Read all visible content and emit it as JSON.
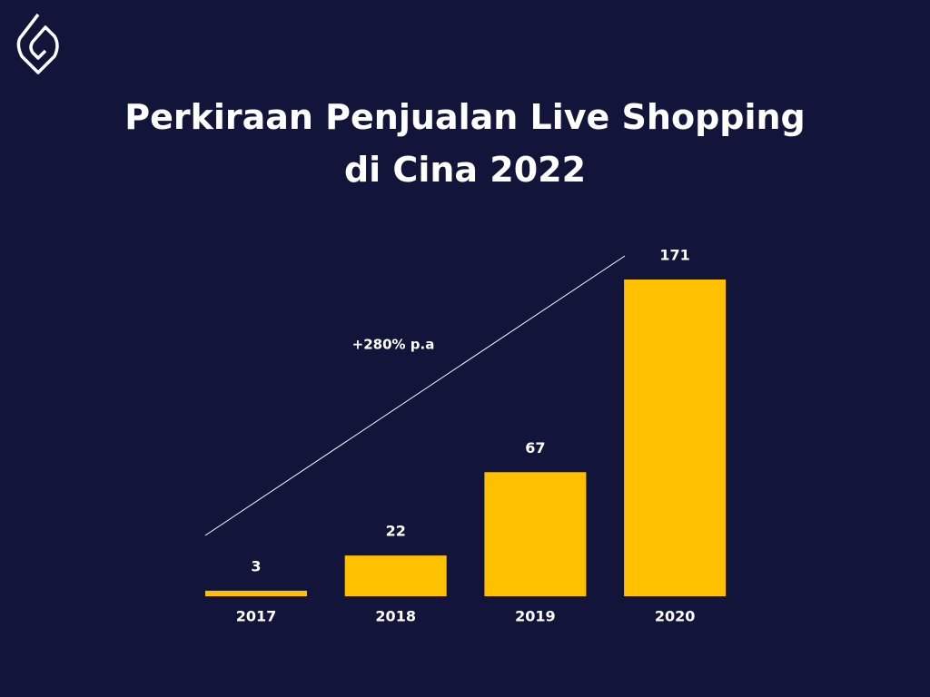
{
  "chart_data": {
    "type": "bar",
    "title": "Perkiraan Penjualan Live Shopping di Cina 2022",
    "annotation": "+280% p.a",
    "categories": [
      "2017",
      "2018",
      "2019",
      "2020"
    ],
    "values": [
      3,
      22,
      67,
      171
    ],
    "color": "#ffc000"
  }
}
